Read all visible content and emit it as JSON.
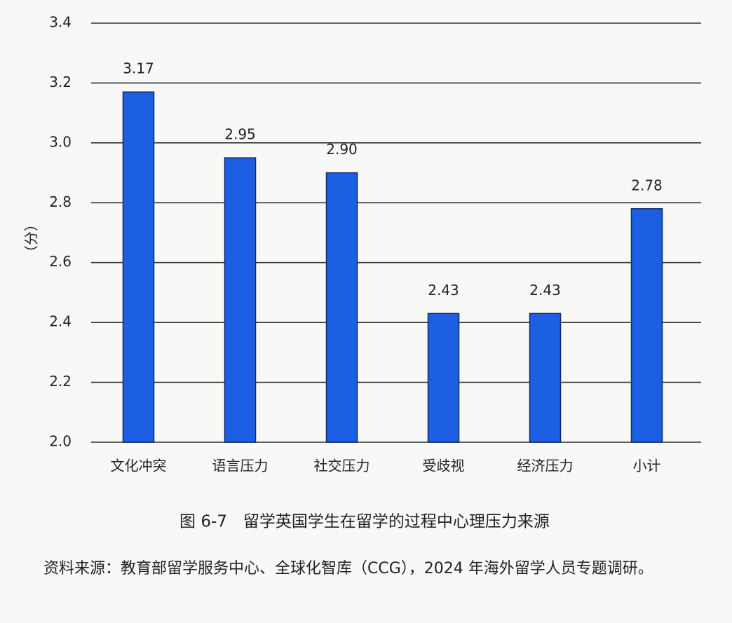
{
  "chart_data": {
    "type": "bar",
    "y_label": "（分）",
    "categories": [
      "文化冲突",
      "语言压力",
      "社交压力",
      "受歧视",
      "经济压力",
      "小计"
    ],
    "values": [
      3.17,
      2.95,
      2.9,
      2.43,
      2.43,
      2.78
    ],
    "value_labels": [
      "3.17",
      "2.95",
      "2.90",
      "2.43",
      "2.43",
      "2.78"
    ],
    "color": "#1c5fe3",
    "ylim": [
      2.0,
      3.4
    ],
    "yticks": [
      {
        "value": 2.0,
        "label": "2.0"
      },
      2.2,
      2.4,
      2.6,
      2.8,
      {
        "value": 3.0,
        "label": "3.0"
      },
      3.2,
      3.4
    ],
    "grid": true,
    "caption": "图 6-7　留学英国学生在留学的过程中心理压力来源",
    "source": "资料来源：教育部留学服务中心、全球化智库（CCG），2024 年海外留学人员专题调研。"
  }
}
